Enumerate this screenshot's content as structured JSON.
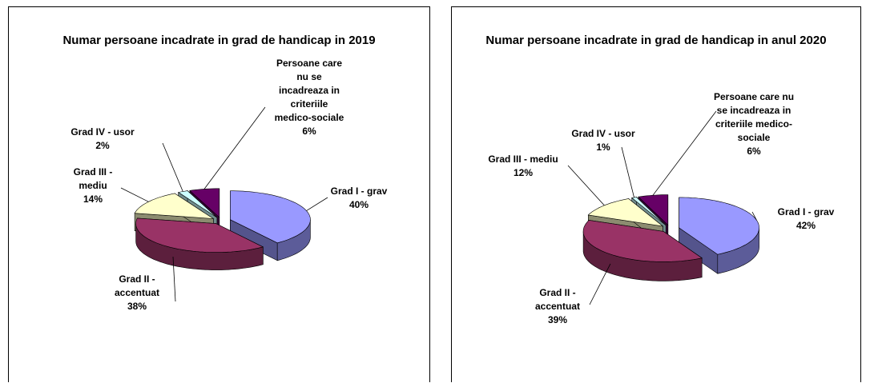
{
  "chart_data": [
    {
      "type": "pie",
      "title": "Numar persoane incadrate in grad de handicap in 2019",
      "categories": [
        "Grad I - grav",
        "Grad II - accentuat",
        "Grad III - mediu",
        "Grad IV - usor",
        "Persoane care nu se incadreaza in criteriile medico-sociale"
      ],
      "values": [
        40,
        38,
        14,
        2,
        6
      ],
      "value_labels": [
        "40%",
        "38%",
        "14%",
        "2%",
        "6%"
      ],
      "colors": [
        "#9999ff",
        "#993366",
        "#ffffcc",
        "#ccffff",
        "#660066"
      ]
    },
    {
      "type": "pie",
      "title": "Numar persoane incadrate in grad de handicap in anul 2020",
      "categories": [
        "Grad I - grav",
        "Grad II - accentuat",
        "Grad III - mediu",
        "Grad IV - usor",
        "Persoane care nu se incadreaza in criteriile medico-sociale"
      ],
      "values": [
        42,
        39,
        12,
        1,
        6
      ],
      "value_labels": [
        "42%",
        "39%",
        "12%",
        "1%",
        "6%"
      ],
      "colors": [
        "#9999ff",
        "#993366",
        "#ffffcc",
        "#ccffff",
        "#660066"
      ]
    }
  ]
}
